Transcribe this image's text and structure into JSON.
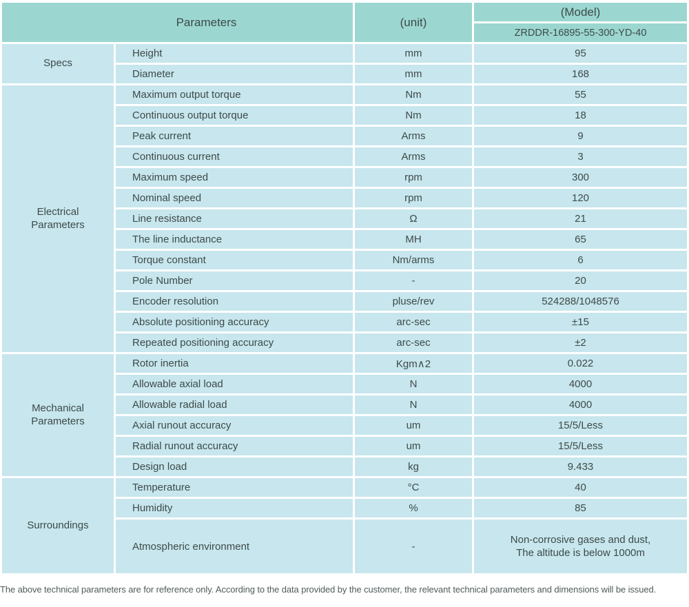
{
  "header": {
    "parameters_label": "Parameters",
    "unit_label": "(unit)",
    "model_label": "(Model)",
    "model_value": "ZRDDR-16895-55-300-YD-40"
  },
  "sections": [
    {
      "name": "Specs",
      "rows": [
        {
          "param": "Height",
          "unit": "mm",
          "value": "95"
        },
        {
          "param": "Diameter",
          "unit": "mm",
          "value": "168"
        }
      ]
    },
    {
      "name": "Electrical\nParameters",
      "rows": [
        {
          "param": "Maximum output torque",
          "unit": "Nm",
          "value": "55"
        },
        {
          "param": "Continuous output torque",
          "unit": "Nm",
          "value": "18"
        },
        {
          "param": "Peak current",
          "unit": "Arms",
          "value": "9"
        },
        {
          "param": "Continuous current",
          "unit": "Arms",
          "value": "3"
        },
        {
          "param": "Maximum speed",
          "unit": "rpm",
          "value": "300"
        },
        {
          "param": "Nominal speed",
          "unit": "rpm",
          "value": "120"
        },
        {
          "param": "Line resistance",
          "unit": "Ω",
          "value": "21"
        },
        {
          "param": "The line inductance",
          "unit": "MH",
          "value": "65"
        },
        {
          "param": "Torque constant",
          "unit": "Nm/arms",
          "value": "6"
        },
        {
          "param": "Pole Number",
          "unit": "-",
          "value": "20"
        },
        {
          "param": "Encoder resolution",
          "unit": "pluse/rev",
          "value": "524288/1048576"
        },
        {
          "param": "Absolute positioning accuracy",
          "unit": "arc-sec",
          "value": "±15"
        },
        {
          "param": "Repeated positioning accuracy",
          "unit": "arc-sec",
          "value": "±2"
        }
      ]
    },
    {
      "name": "Mechanical\nParameters",
      "rows": [
        {
          "param": "Rotor inertia",
          "unit": "Kgm∧2",
          "value": "0.022"
        },
        {
          "param": "Allowable axial load",
          "unit": "N",
          "value": "4000"
        },
        {
          "param": "Allowable radial load",
          "unit": "N",
          "value": "4000"
        },
        {
          "param": "Axial runout accuracy",
          "unit": "um",
          "value": "15/5/Less"
        },
        {
          "param": "Radial runout accuracy",
          "unit": "um",
          "value": "15/5/Less"
        },
        {
          "param": "Design load",
          "unit": "kg",
          "value": "9.433"
        }
      ]
    },
    {
      "name": "Surroundings",
      "rows": [
        {
          "param": "Temperature",
          "unit": "°C",
          "value": "40"
        },
        {
          "param": "Humidity",
          "unit": "%",
          "value": "85"
        },
        {
          "param": "Atmospheric environment",
          "unit": "-",
          "value": "Non-corrosive gases and dust,\nThe altitude is below 1000m"
        }
      ]
    }
  ],
  "footer": {
    "note": "The above technical parameters are for reference only. According to the data provided by the customer, the relevant technical parameters and dimensions will be issued."
  },
  "colors": {
    "header_bg": "#9bd7d0",
    "cell_bg": "#c7e6ed",
    "text_color": "#3e4a49",
    "footer_text": "#4e5c5b"
  }
}
